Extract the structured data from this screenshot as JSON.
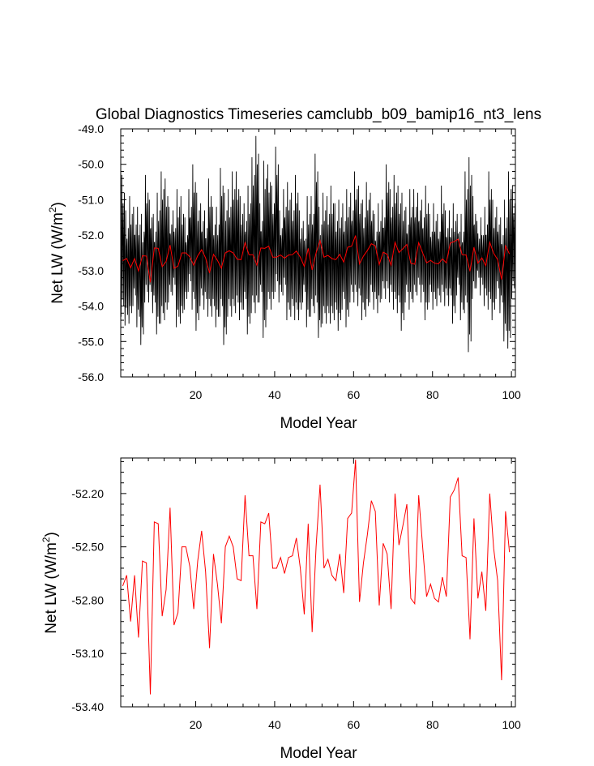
{
  "colors": {
    "monthly": "#000000",
    "annual": "#ff0000",
    "axes": "#000000"
  },
  "chart_data": [
    {
      "type": "line",
      "title": "Global Diagnostics Timeseries camclubb_b09_bamip16_nt3_lens",
      "xlabel": "Model Year",
      "ylabel": "Net LW (W/m",
      "ylabel_sup": "2",
      "ylabel_close": ")",
      "xlim": [
        1,
        101
      ],
      "ylim": [
        -56.0,
        -49.0
      ],
      "xticks": [
        20,
        40,
        60,
        80,
        100
      ],
      "xtick_labels": [
        "20",
        "40",
        "60",
        "80",
        "100"
      ],
      "yticks": [
        -49.0,
        -50.0,
        -51.0,
        -52.0,
        -53.0,
        -54.0,
        -55.0,
        -56.0
      ],
      "ytick_labels": [
        "-49.0",
        "-50.0",
        "-51.0",
        "-52.0",
        "-53.0",
        "-54.0",
        "-55.0",
        "-56.0"
      ],
      "grid": false,
      "series": [
        {
          "color": "#000000",
          "monthly_min": [
            -54.3,
            -54.55,
            -54.5,
            -54.0,
            -54.6,
            -55.1,
            -53.9,
            -53.9,
            -54.2,
            -54.8,
            -54.5,
            -54.4,
            -53.9,
            -53.7,
            -54.6,
            -54.5,
            -54.1,
            -53.6,
            -54.1,
            -54.7,
            -54.0,
            -54.1,
            -54.3,
            -54.3,
            -54.6,
            -54.3,
            -55.1,
            -54.3,
            -54.3,
            -54.2,
            -54.4,
            -54.1,
            -54.8,
            -54.2,
            -54.2,
            -53.9,
            -54.9,
            -54.1,
            -54.1,
            -53.6,
            -53.9,
            -53.7,
            -54.4,
            -54.3,
            -54.4,
            -54.4,
            -53.9,
            -54.6,
            -54.3,
            -54.2,
            -54.9,
            -54.5,
            -54.5,
            -54.5,
            -54.4,
            -54.7,
            -54.1,
            -54.6,
            -53.9,
            -53.9,
            -54.0,
            -54.4,
            -54.3,
            -53.9,
            -54.1,
            -54.2,
            -53.8,
            -53.8,
            -53.9,
            -54.1,
            -54.2,
            -54.7,
            -53.9,
            -54.1,
            -53.9,
            -53.7,
            -53.9,
            -54.4,
            -53.9,
            -54.1,
            -54.0,
            -53.9,
            -54.0,
            -54.0,
            -54.5,
            -53.7,
            -54.4,
            -54.2,
            -55.3,
            -53.8,
            -53.5,
            -53.7,
            -54.0,
            -54.1,
            -54.4,
            -53.8,
            -54.2,
            -55.0,
            -55.2,
            -53.8
          ],
          "monthly_max": [
            -50.3,
            -51.3,
            -50.9,
            -51.2,
            -51.2,
            -51.4,
            -50.3,
            -51.0,
            -51.4,
            -50.8,
            -50.2,
            -50.4,
            -51.2,
            -51.3,
            -50.7,
            -50.9,
            -51.5,
            -50.7,
            -50.0,
            -50.8,
            -51.1,
            -51.3,
            -50.4,
            -51.2,
            -51.2,
            -50.1,
            -50.8,
            -50.7,
            -50.2,
            -50.2,
            -50.9,
            -51.1,
            -50.6,
            -49.8,
            -49.2,
            -51.1,
            -49.9,
            -50.0,
            -50.6,
            -49.5,
            -51.3,
            -50.7,
            -50.5,
            -50.8,
            -50.3,
            -51.3,
            -51.6,
            -50.9,
            -50.9,
            -49.7,
            -51.2,
            -50.8,
            -50.9,
            -50.6,
            -51.1,
            -51.0,
            -51.1,
            -50.7,
            -50.8,
            -50.2,
            -50.6,
            -51.0,
            -50.5,
            -50.8,
            -51.4,
            -51.1,
            -51.0,
            -50.0,
            -50.7,
            -50.3,
            -50.6,
            -50.8,
            -51.2,
            -50.7,
            -50.7,
            -50.8,
            -51.0,
            -50.6,
            -51.4,
            -51.1,
            -51.4,
            -50.6,
            -51.3,
            -51.3,
            -51.1,
            -51.4,
            -51.4,
            -50.2,
            -49.8,
            -50.9,
            -51.6,
            -51.5,
            -51.2,
            -50.2,
            -51.0,
            -51.2,
            -51.5,
            -51.0,
            -50.2,
            -50.6
          ]
        },
        {
          "color": "#ff0000",
          "values": "annual"
        }
      ]
    },
    {
      "type": "line",
      "title": "",
      "xlabel": "Model Year",
      "ylabel": "Net LW (W/m",
      "ylabel_sup": "2",
      "ylabel_close": ")",
      "xlim": [
        1,
        101
      ],
      "ylim": [
        -53.4,
        -52.0
      ],
      "xticks": [
        20,
        40,
        60,
        80,
        100
      ],
      "xtick_labels": [
        "20",
        "40",
        "60",
        "80",
        "100"
      ],
      "yticks": [
        -52.2,
        -52.5,
        -52.8,
        -53.1,
        -53.4
      ],
      "ytick_labels": [
        "-52.20",
        "-52.50",
        "-52.80",
        "-53.10",
        "-53.40"
      ],
      "grid": false,
      "series": [
        {
          "color": "#ff0000",
          "x_start": 1,
          "values": [
            -52.72,
            -52.66,
            -52.92,
            -52.66,
            -53.01,
            -52.58,
            -52.59,
            -53.33,
            -52.36,
            -52.37,
            -52.89,
            -52.74,
            -52.28,
            -52.94,
            -52.87,
            -52.5,
            -52.5,
            -52.61,
            -52.85,
            -52.58,
            -52.41,
            -52.64,
            -53.07,
            -52.54,
            -52.71,
            -52.93,
            -52.5,
            -52.44,
            -52.5,
            -52.68,
            -52.69,
            -52.21,
            -52.55,
            -52.55,
            -52.85,
            -52.36,
            -52.37,
            -52.31,
            -52.62,
            -52.62,
            -52.56,
            -52.65,
            -52.56,
            -52.55,
            -52.45,
            -52.62,
            -52.88,
            -52.37,
            -52.98,
            -52.5,
            -52.15,
            -52.62,
            -52.57,
            -52.66,
            -52.69,
            -52.54,
            -52.76,
            -52.34,
            -52.31,
            -52.01,
            -52.81,
            -52.59,
            -52.43,
            -52.24,
            -52.3,
            -52.83,
            -52.48,
            -52.54,
            -52.85,
            -52.2,
            -52.49,
            -52.38,
            -52.26,
            -52.79,
            -52.82,
            -52.21,
            -52.5,
            -52.78,
            -52.71,
            -52.79,
            -52.81,
            -52.67,
            -52.78,
            -52.22,
            -52.18,
            -52.11,
            -52.55,
            -52.56,
            -53.02,
            -52.34,
            -52.79,
            -52.64,
            -52.86,
            -52.2,
            -52.51,
            -52.69,
            -53.25,
            -52.3,
            -52.53
          ]
        }
      ]
    }
  ]
}
